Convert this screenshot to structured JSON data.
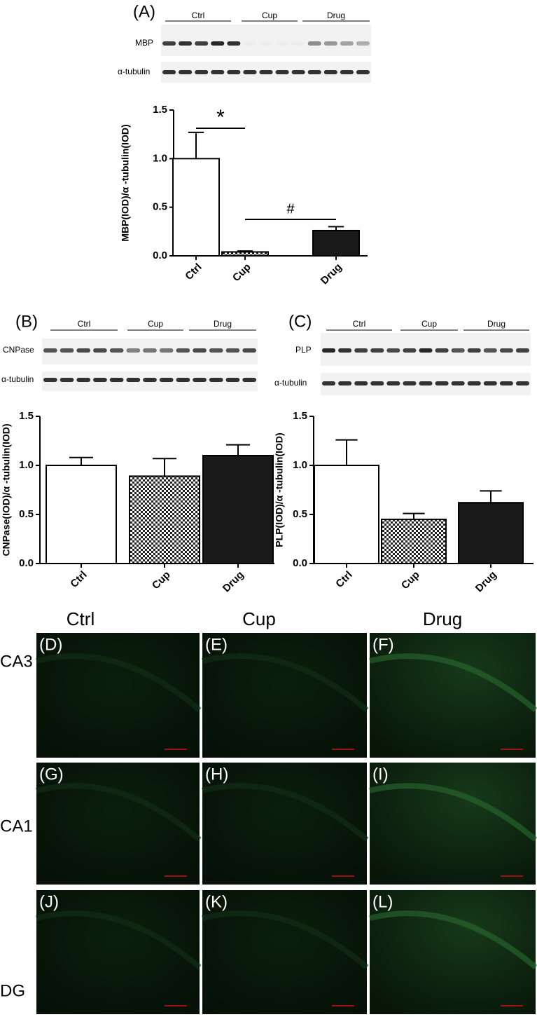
{
  "chart_data": [
    {
      "type": "bar",
      "panel": "(A)",
      "ylabel": "MBP(IOD)/α -tubulin(IOD)",
      "categories": [
        "Ctrl",
        "Cup",
        "Drug"
      ],
      "values": [
        1.0,
        0.04,
        0.26
      ],
      "errors": [
        0.27,
        0.01,
        0.04
      ],
      "colors": [
        "#ffffff",
        "#ffffff",
        "#1a1a1a"
      ],
      "hatch": [
        false,
        true,
        false
      ],
      "annotations": [
        "*",
        "#"
      ],
      "ylim": [
        0,
        1.5
      ],
      "yticks": [
        {
          "value": 0,
          "label": "0.0"
        },
        0.5,
        {
          "value": 1,
          "label": "1.0"
        },
        1.5
      ]
    },
    {
      "type": "bar",
      "panel": "(B)",
      "ylabel": "CNPase(IOD)/α -tubulin(IOD)",
      "categories": [
        "Ctrl",
        "Cup",
        "Drug"
      ],
      "values": [
        1.0,
        0.89,
        1.1
      ],
      "errors": [
        0.08,
        0.18,
        0.11
      ],
      "colors": [
        "#ffffff",
        "#ffffff",
        "#1a1a1a"
      ],
      "hatch": [
        false,
        true,
        false
      ],
      "ylim": [
        0,
        1.5
      ],
      "yticks": [
        {
          "value": 0,
          "label": "0.0"
        },
        0.5,
        {
          "value": 1,
          "label": "1.0"
        },
        1.5
      ]
    },
    {
      "type": "bar",
      "panel": "(C)",
      "ylabel": "PLP(IOD)/α -tubulin(IOD)",
      "categories": [
        "Ctrl",
        "Cup",
        "Drug"
      ],
      "values": [
        1.0,
        0.45,
        0.62
      ],
      "errors": [
        0.26,
        0.06,
        0.12
      ],
      "colors": [
        "#ffffff",
        "#ffffff",
        "#1a1a1a"
      ],
      "hatch": [
        false,
        true,
        false
      ],
      "ylim": [
        0,
        1.5
      ],
      "yticks": [
        {
          "value": 0,
          "label": "0.0"
        },
        0.5,
        {
          "value": 1,
          "label": "1.0"
        },
        1.5
      ]
    }
  ],
  "blots": [
    {
      "lanes": [
        "Ctrl",
        "Cup",
        "Drug"
      ],
      "proteins": [
        "MBP",
        "α-tubulin"
      ]
    },
    {
      "lanes": [
        "Ctrl",
        "Cup",
        "Drug"
      ],
      "proteins": [
        "CNPase",
        "α-tubulin"
      ]
    },
    {
      "lanes": [
        "Ctrl",
        "Cup",
        "Drug"
      ],
      "proteins": [
        "PLP",
        "α-tubulin"
      ]
    }
  ],
  "micrographs": {
    "columns": [
      "Ctrl",
      "Cup",
      "Drug"
    ],
    "rows": [
      "CA3",
      "CA1",
      "DG"
    ],
    "panels": [
      "(D)",
      "(E)",
      "(F)",
      "(G)",
      "(H)",
      "(I)",
      "(J)",
      "(K)",
      "(L)"
    ]
  }
}
